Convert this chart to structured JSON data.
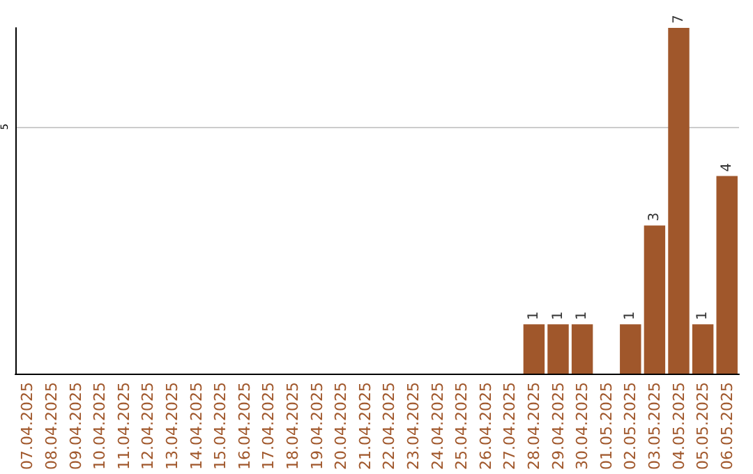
{
  "chart_data": {
    "type": "bar",
    "categories": [
      "07.04.2025",
      "08.04.2025",
      "09.04.2025",
      "10.04.2025",
      "11.04.2025",
      "12.04.2025",
      "13.04.2025",
      "14.04.2025",
      "15.04.2025",
      "16.04.2025",
      "17.04.2025",
      "18.04.2025",
      "19.04.2025",
      "20.04.2025",
      "21.04.2025",
      "22.04.2025",
      "23.04.2025",
      "24.04.2025",
      "25.04.2025",
      "26.04.2025",
      "27.04.2025",
      "28.04.2025",
      "29.04.2025",
      "30.04.2025",
      "01.05.2025",
      "02.05.2025",
      "03.05.2025",
      "04.05.2025",
      "05.05.2025",
      "06.05.2025"
    ],
    "values": [
      null,
      null,
      null,
      null,
      null,
      null,
      null,
      null,
      null,
      null,
      null,
      null,
      null,
      null,
      null,
      null,
      null,
      null,
      null,
      null,
      null,
      1,
      1,
      1,
      null,
      1,
      3,
      7,
      1,
      4
    ],
    "value_labels": [
      null,
      null,
      null,
      null,
      null,
      null,
      null,
      null,
      null,
      null,
      null,
      null,
      null,
      null,
      null,
      null,
      null,
      null,
      null,
      null,
      null,
      "1",
      "1",
      "1",
      null,
      "1",
      "3",
      "7",
      "1",
      "4"
    ],
    "color": "#a0572b",
    "ylim": [
      0,
      7
    ],
    "yticks": [
      {
        "value": 0,
        "label": null
      },
      5
    ],
    "grid": "y"
  }
}
